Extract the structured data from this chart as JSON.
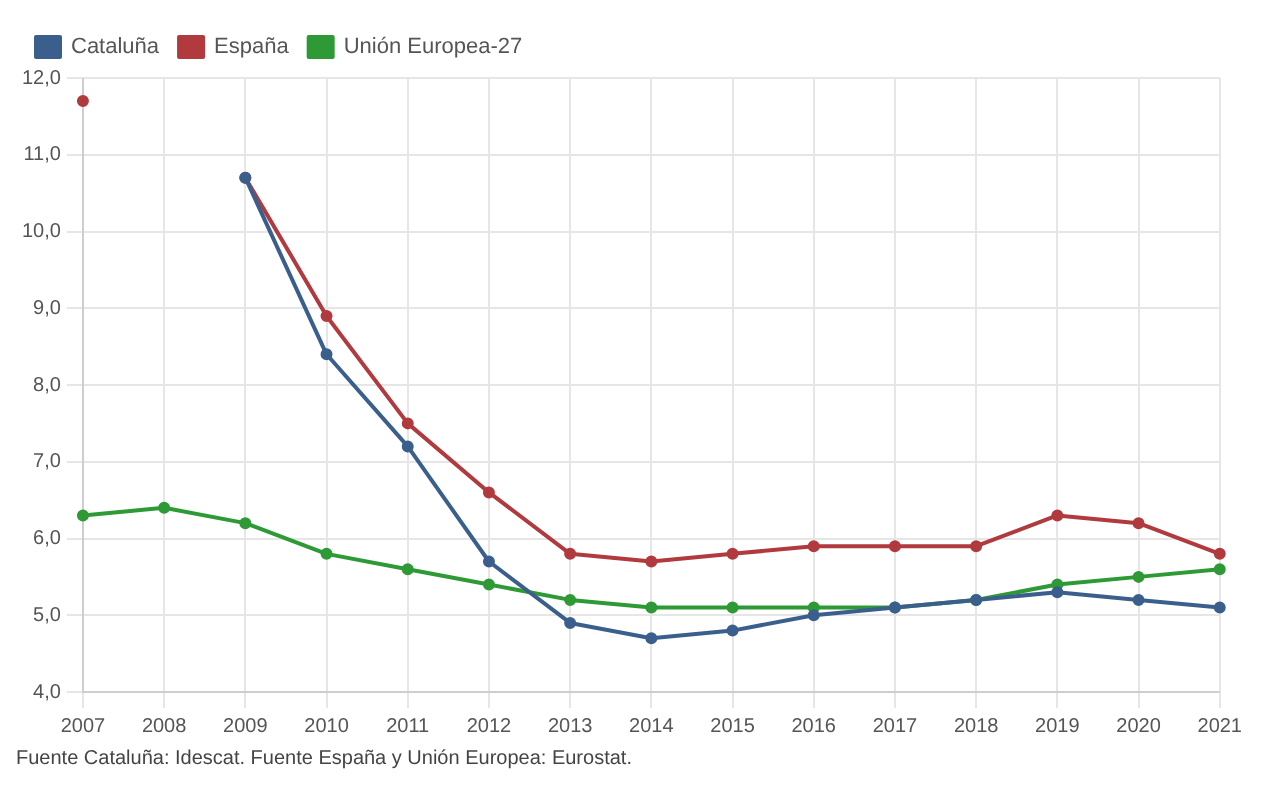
{
  "chart_data": {
    "type": "line",
    "categories": [
      "2007",
      "2008",
      "2009",
      "2010",
      "2011",
      "2012",
      "2013",
      "2014",
      "2015",
      "2016",
      "2017",
      "2018",
      "2019",
      "2020",
      "2021"
    ],
    "series": [
      {
        "name": "Cataluña",
        "color": "#3b5f8c",
        "values": [
          null,
          null,
          10.7,
          8.4,
          7.2,
          5.7,
          4.9,
          4.7,
          4.8,
          5.0,
          5.1,
          5.2,
          5.3,
          5.2,
          5.1
        ]
      },
      {
        "name": "España",
        "color": "#b03a3e",
        "values": [
          11.7,
          null,
          10.7,
          8.9,
          7.5,
          6.6,
          5.8,
          5.7,
          5.8,
          5.9,
          5.9,
          5.9,
          6.3,
          6.2,
          5.8
        ]
      },
      {
        "name": "Unión Europea-27",
        "color": "#2e9a35",
        "values": [
          6.3,
          6.4,
          6.2,
          5.8,
          5.6,
          5.4,
          5.2,
          5.1,
          5.1,
          5.1,
          5.1,
          5.2,
          5.4,
          5.5,
          5.6
        ]
      }
    ],
    "ylim": [
      4,
      12
    ],
    "yticks": [
      {
        "value": 4,
        "label": "4,0"
      },
      {
        "value": 5,
        "label": "5,0"
      },
      {
        "value": 6,
        "label": "6,0"
      },
      {
        "value": 7,
        "label": "7,0"
      },
      {
        "value": 8,
        "label": "8,0"
      },
      {
        "value": 9,
        "label": "9,0"
      },
      {
        "value": 10,
        "label": "10,0"
      },
      {
        "value": 11,
        "label": "11,0"
      },
      {
        "value": 12,
        "label": "12,0"
      }
    ],
    "grid": true,
    "legend": "top left",
    "marker": "circle",
    "line_style": "solid",
    "annotations": [
      "Fuente Cataluña: Idescat. Fuente España y Unión Europea: Eurostat."
    ]
  }
}
